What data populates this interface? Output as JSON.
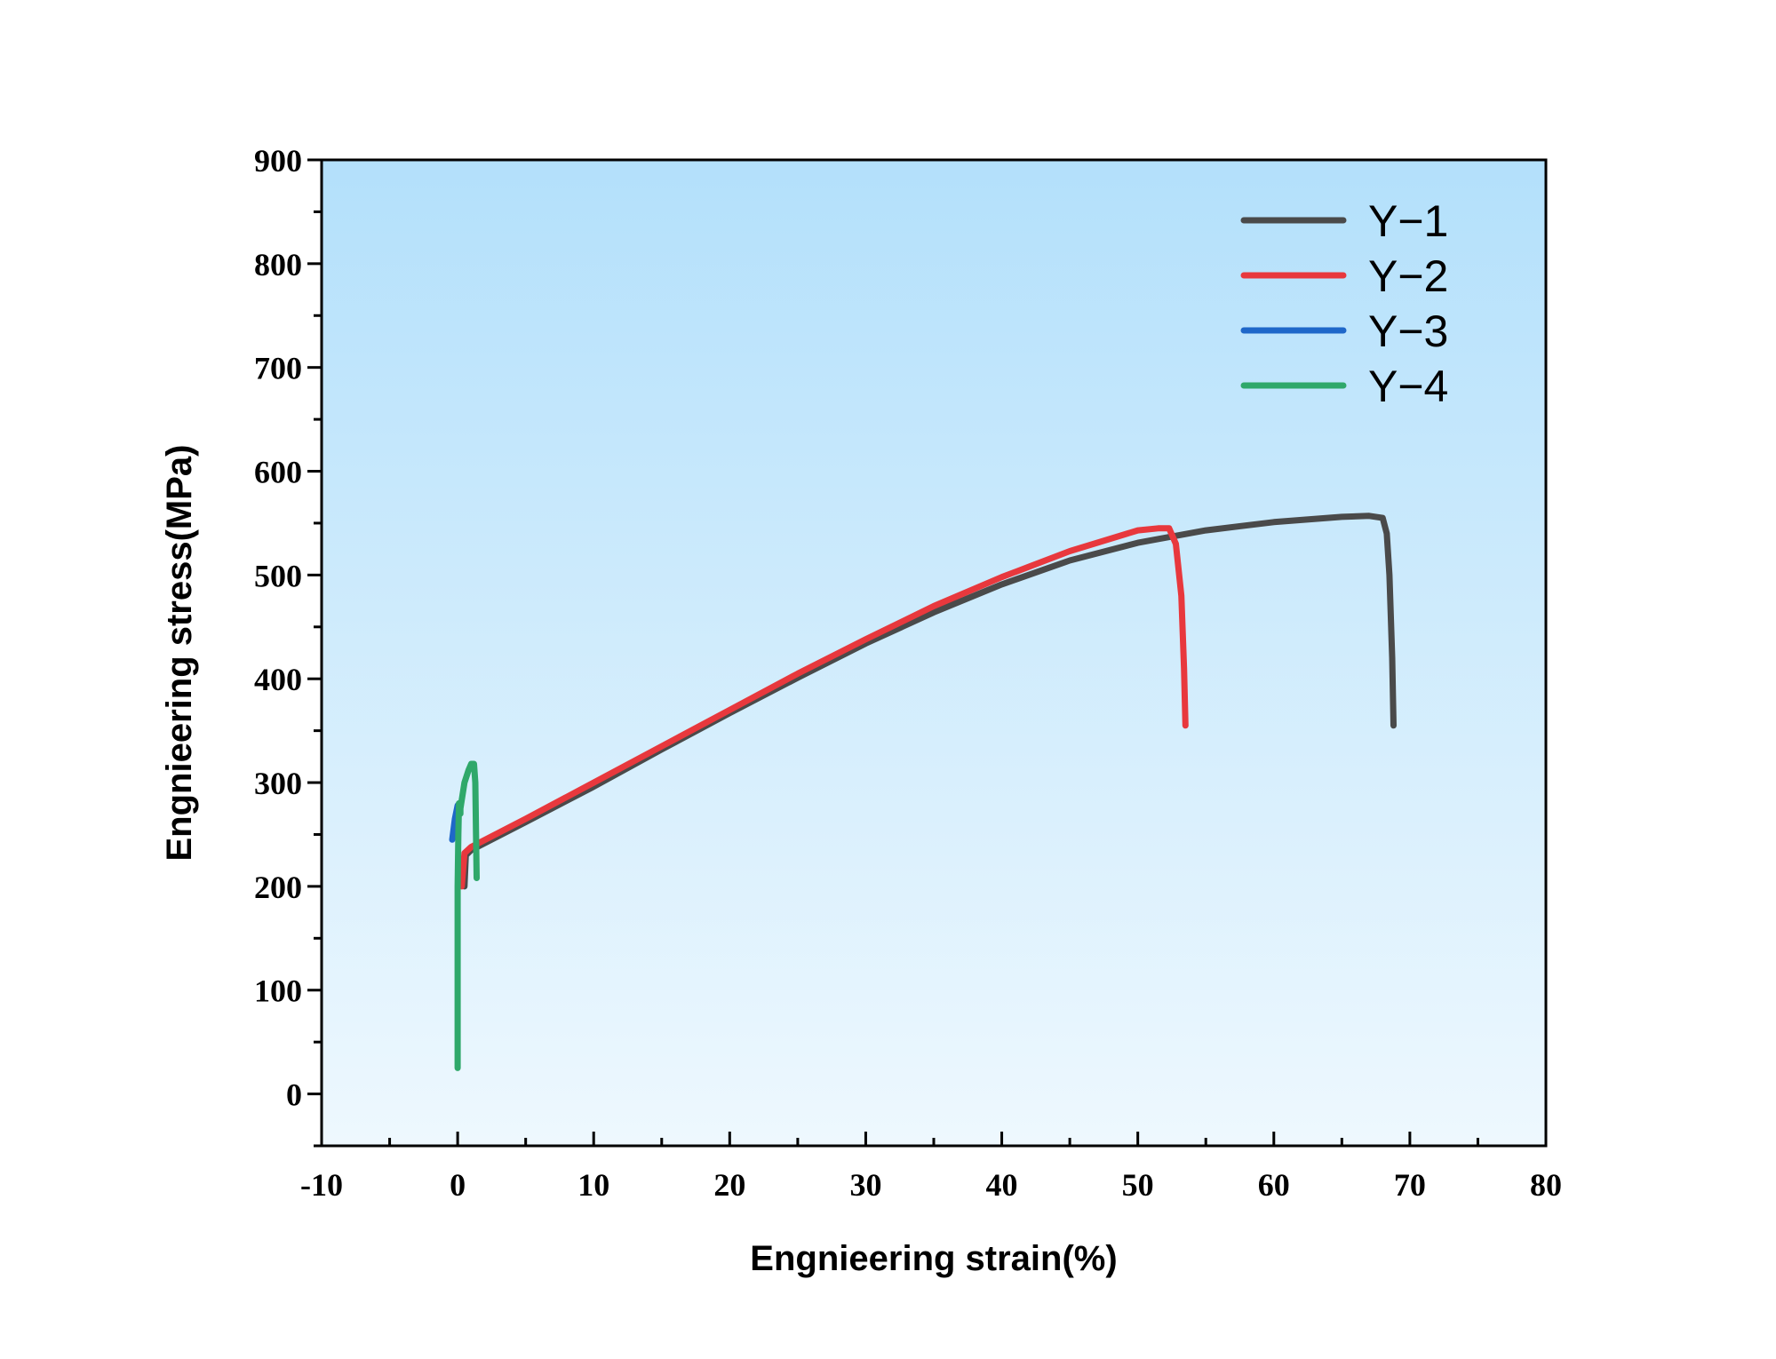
{
  "chart_data": {
    "type": "line",
    "title": "",
    "xlabel": "Engnieering strain(%)",
    "ylabel": "Engnieering stress(MPa)",
    "xlim": [
      -10,
      80
    ],
    "ylim": [
      -50,
      900
    ],
    "xticks": [
      -10,
      0,
      10,
      20,
      30,
      40,
      50,
      60,
      70,
      80
    ],
    "xtick_labels": [
      "-10",
      "0",
      "10",
      "20",
      "30",
      "40",
      "50",
      "60",
      "70",
      "80"
    ],
    "yticks": [
      0,
      100,
      200,
      300,
      400,
      500,
      600,
      700,
      800,
      900
    ],
    "ytick_labels": [
      "0",
      "100",
      "200",
      "300",
      "400",
      "500",
      "600",
      "700",
      "800",
      "900"
    ],
    "grid": false,
    "legend_position": "top-right",
    "background_gradient": [
      "#b3e0fb",
      "#eef8fe"
    ],
    "series": [
      {
        "name": "Y−1",
        "color": "#4a4a4a",
        "x": [
          0.5,
          0.6,
          1,
          5,
          10,
          15,
          20,
          25,
          30,
          35,
          40,
          45,
          50,
          55,
          60,
          65,
          67,
          68,
          68.3,
          68.5,
          68.7,
          68.8
        ],
        "y": [
          200,
          230,
          235,
          262,
          296,
          332,
          367,
          401,
          434,
          464,
          491,
          514,
          531,
          543,
          551,
          556,
          557,
          555,
          540,
          500,
          420,
          355
        ]
      },
      {
        "name": "Y−2",
        "color": "#e8383d",
        "x": [
          0.3,
          0.5,
          1,
          5,
          10,
          15,
          20,
          25,
          30,
          35,
          40,
          45,
          50,
          51.5,
          52.3,
          52.8,
          53.2,
          53.4,
          53.5
        ],
        "y": [
          200,
          232,
          238,
          265,
          300,
          335,
          370,
          405,
          438,
          470,
          498,
          523,
          543,
          545,
          545,
          530,
          480,
          410,
          355
        ]
      },
      {
        "name": "Y−3",
        "color": "#1f67c9",
        "x": [
          -0.4,
          -0.2,
          0,
          0.2
        ],
        "y": [
          245,
          265,
          278,
          280
        ]
      },
      {
        "name": "Y−4",
        "color": "#2fa86a",
        "x": [
          0,
          0,
          0,
          0.05,
          0.1,
          0.2,
          0.2,
          0.5,
          0.8,
          1.0,
          1.2,
          1.3,
          1.35,
          1.4
        ],
        "y": [
          25,
          100,
          200,
          250,
          280,
          270,
          275,
          300,
          312,
          318,
          318,
          300,
          250,
          208
        ]
      }
    ]
  }
}
